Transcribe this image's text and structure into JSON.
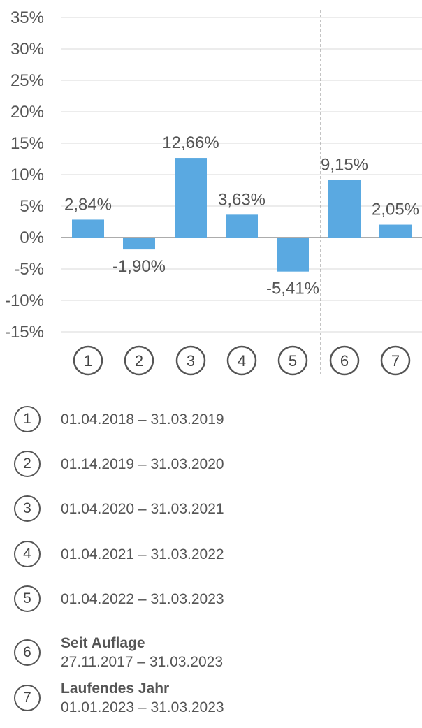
{
  "chart_data": {
    "type": "bar",
    "categories": [
      "1",
      "2",
      "3",
      "4",
      "5",
      "6",
      "7"
    ],
    "values": [
      2.84,
      -1.9,
      12.66,
      3.63,
      -5.41,
      9.15,
      2.05
    ],
    "value_labels": [
      "2,84%",
      "-1,90%",
      "12,66%",
      "3,63%",
      "-5,41%",
      "9,15%",
      "2,05%"
    ],
    "y_ticks": [
      35,
      30,
      25,
      20,
      15,
      10,
      5,
      0,
      -5,
      -10,
      -15
    ],
    "y_tick_labels": [
      "35%",
      "30%",
      "25%",
      "20%",
      "15%",
      "10%",
      "5%",
      "0%",
      "-5%",
      "-10%",
      "-15%"
    ],
    "ylim": [
      -15,
      35
    ],
    "grid": true,
    "bar_color": "#5aa9e1",
    "separator_after_category": "5"
  },
  "legend": {
    "items": [
      {
        "num": "1",
        "label": "",
        "range": "01.04.2018 – 31.03.2019"
      },
      {
        "num": "2",
        "label": "",
        "range": "01.14.2019 – 31.03.2020"
      },
      {
        "num": "3",
        "label": "",
        "range": "01.04.2020 – 31.03.2021"
      },
      {
        "num": "4",
        "label": "",
        "range": "01.04.2021 – 31.03.2022"
      },
      {
        "num": "5",
        "label": "",
        "range": "01.04.2022 – 31.03.2023"
      },
      {
        "num": "6",
        "label": "Seit Auflage",
        "range": "27.11.2017 – 31.03.2023"
      },
      {
        "num": "7",
        "label": "Laufendes Jahr",
        "range": "01.01.2023 – 31.03.2023"
      }
    ]
  }
}
